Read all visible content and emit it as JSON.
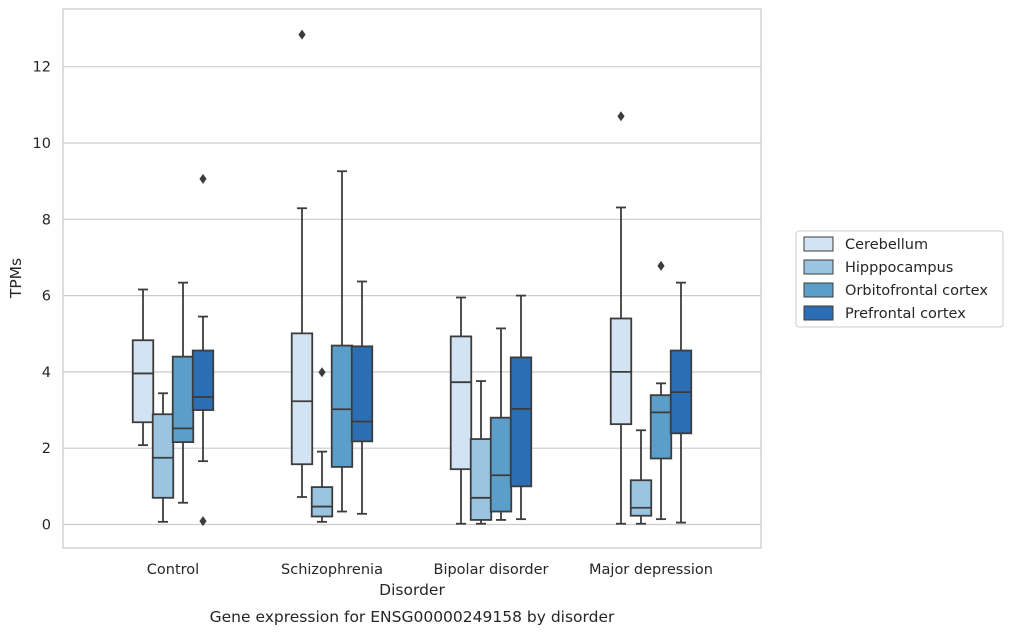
{
  "caption": "Gene expression for ENSG00000249158 by disorder",
  "chart_data": {
    "type": "box",
    "title": "",
    "xlabel": "Disorder",
    "ylabel": "TPMs",
    "ylim": [
      -0.6,
      13.5
    ],
    "yticks": [
      0,
      2,
      4,
      6,
      8,
      10,
      12
    ],
    "grid": true,
    "legend_position": "right",
    "categories": [
      "Control",
      "Schizophrenia",
      "Bipolar disorder",
      "Major depression"
    ],
    "series": [
      {
        "name": "Cerebellum",
        "color": "#d2e3f3",
        "boxes": [
          {
            "whisker_low": 2.08,
            "q1": 2.68,
            "median": 3.96,
            "q3": 4.83,
            "whisker_high": 6.16,
            "outliers": []
          },
          {
            "whisker_low": 0.72,
            "q1": 1.58,
            "median": 3.23,
            "q3": 5.01,
            "whisker_high": 8.29,
            "outliers": [
              12.84
            ]
          },
          {
            "whisker_low": 0.02,
            "q1": 1.45,
            "median": 3.73,
            "q3": 4.93,
            "whisker_high": 5.95,
            "outliers": []
          },
          {
            "whisker_low": 0.02,
            "q1": 2.63,
            "median": 4.0,
            "q3": 5.4,
            "whisker_high": 8.31,
            "outliers": [
              10.7
            ]
          }
        ]
      },
      {
        "name": "Hipppocampus",
        "color": "#9ac4e0",
        "boxes": [
          {
            "whisker_low": 0.07,
            "q1": 0.7,
            "median": 1.75,
            "q3": 2.89,
            "whisker_high": 3.44,
            "outliers": []
          },
          {
            "whisker_low": 0.07,
            "q1": 0.21,
            "median": 0.47,
            "q3": 0.98,
            "whisker_high": 1.91,
            "outliers": [
              3.99
            ]
          },
          {
            "whisker_low": 0.02,
            "q1": 0.12,
            "median": 0.7,
            "q3": 2.24,
            "whisker_high": 3.76,
            "outliers": []
          },
          {
            "whisker_low": 0.02,
            "q1": 0.23,
            "median": 0.44,
            "q3": 1.16,
            "whisker_high": 2.47,
            "outliers": []
          }
        ]
      },
      {
        "name": "Orbitofrontal cortex",
        "color": "#5b9ec9",
        "boxes": [
          {
            "whisker_low": 0.57,
            "q1": 2.16,
            "median": 2.52,
            "q3": 4.4,
            "whisker_high": 6.34,
            "outliers": []
          },
          {
            "whisker_low": 0.34,
            "q1": 1.51,
            "median": 3.02,
            "q3": 4.69,
            "whisker_high": 9.26,
            "outliers": []
          },
          {
            "whisker_low": 0.12,
            "q1": 0.34,
            "median": 1.29,
            "q3": 2.8,
            "whisker_high": 5.14,
            "outliers": []
          },
          {
            "whisker_low": 0.14,
            "q1": 1.73,
            "median": 2.94,
            "q3": 3.39,
            "whisker_high": 3.7,
            "outliers": [
              6.78
            ]
          }
        ]
      },
      {
        "name": "Prefrontal cortex",
        "color": "#2c6eb3",
        "boxes": [
          {
            "whisker_low": 1.66,
            "q1": 3.0,
            "median": 3.34,
            "q3": 4.56,
            "whisker_high": 5.45,
            "outliers": [
              9.06,
              0.09
            ]
          },
          {
            "whisker_low": 0.28,
            "q1": 2.18,
            "median": 2.7,
            "q3": 4.67,
            "whisker_high": 6.37,
            "outliers": []
          },
          {
            "whisker_low": 0.14,
            "q1": 1.0,
            "median": 3.03,
            "q3": 4.38,
            "whisker_high": 6.0,
            "outliers": []
          },
          {
            "whisker_low": 0.05,
            "q1": 2.39,
            "median": 3.47,
            "q3": 4.56,
            "whisker_high": 6.34,
            "outliers": []
          }
        ]
      }
    ]
  }
}
